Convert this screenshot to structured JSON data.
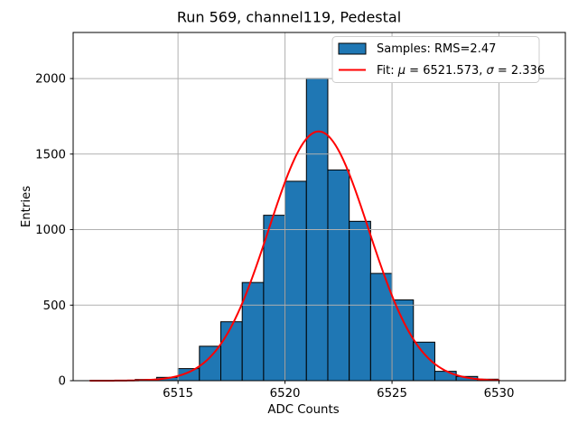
{
  "figure": {
    "title": "Run 569, channel119, Pedestal",
    "xlabel": "ADC Counts",
    "ylabel": "Entries"
  },
  "legend": {
    "position": "upper right",
    "samples_label": "Samples: RMS=2.47",
    "fit_label": "Fit: μ = 6521.573, σ = 2.336"
  },
  "stats": {
    "rms": 2.47,
    "fit_mu": 6521.573,
    "fit_sigma": 2.336
  },
  "colors": {
    "bar_fill": "#1f77b4",
    "bar_edge": "#000000",
    "fit_line": "#ff0000",
    "grid": "#b0b0b0",
    "frame": "#000000",
    "legend_border": "#cccccc",
    "background": "#ffffff"
  },
  "chart_data": {
    "type": "bar",
    "subtype": "histogram-with-gaussian-fit",
    "title": "Run 569, channel119, Pedestal",
    "xlabel": "ADC Counts",
    "ylabel": "Entries",
    "xlim": [
      6510.1,
      6533.1
    ],
    "ylim": [
      0,
      2305
    ],
    "xticks": [
      6515,
      6520,
      6525,
      6530
    ],
    "yticks": [
      0,
      500,
      1000,
      1500,
      2000
    ],
    "grid": true,
    "bin_width": 1,
    "bin_left_edges": [
      6513,
      6514,
      6515,
      6516,
      6517,
      6518,
      6519,
      6520,
      6521,
      6522,
      6523,
      6524,
      6525,
      6526,
      6527,
      6528,
      6529
    ],
    "counts": [
      8,
      22,
      80,
      228,
      390,
      650,
      1095,
      1320,
      2000,
      1395,
      1055,
      710,
      535,
      255,
      62,
      28,
      10
    ],
    "series": [
      {
        "name": "Samples: RMS=2.47",
        "kind": "histogram"
      },
      {
        "name": "Fit: μ = 6521.573, σ = 2.336",
        "kind": "gaussian-curve"
      }
    ],
    "fit": {
      "shape": "gaussian",
      "mu": 6521.573,
      "sigma": 2.336,
      "amplitude": 1650,
      "x_range": [
        6510.9,
        6530.0
      ]
    },
    "legend_position": "upper right"
  }
}
